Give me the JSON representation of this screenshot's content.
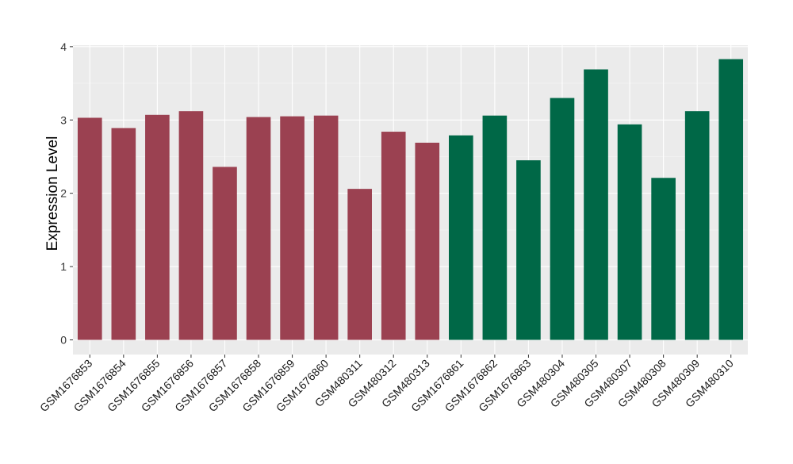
{
  "chart_data": {
    "type": "bar",
    "ylabel": "Expression Level",
    "xlabel": "",
    "ylim": [
      -0.2,
      4.02
    ],
    "yticks": [
      0,
      1,
      2,
      3,
      4
    ],
    "grid": true,
    "categories": [
      "GSM1676853",
      "GSM1676854",
      "GSM1676855",
      "GSM1676856",
      "GSM1676857",
      "GSM1676858",
      "GSM1676859",
      "GSM1676860",
      "GSM480311",
      "GSM480312",
      "GSM480313",
      "GSM1676861",
      "GSM1676862",
      "GSM1676863",
      "GSM480304",
      "GSM480305",
      "GSM480307",
      "GSM480308",
      "GSM480309",
      "GSM480310"
    ],
    "values": [
      3.03,
      2.89,
      3.07,
      3.12,
      2.36,
      3.04,
      3.05,
      3.06,
      2.06,
      2.84,
      2.69,
      2.79,
      3.06,
      2.45,
      3.3,
      3.69,
      2.94,
      2.21,
      3.12,
      3.83
    ],
    "groups": [
      0,
      0,
      0,
      0,
      0,
      0,
      0,
      0,
      0,
      0,
      0,
      1,
      1,
      1,
      1,
      1,
      1,
      1,
      1,
      1
    ],
    "colors": [
      "#9b4151",
      "#006847"
    ],
    "panel_color": "#ebebeb"
  }
}
